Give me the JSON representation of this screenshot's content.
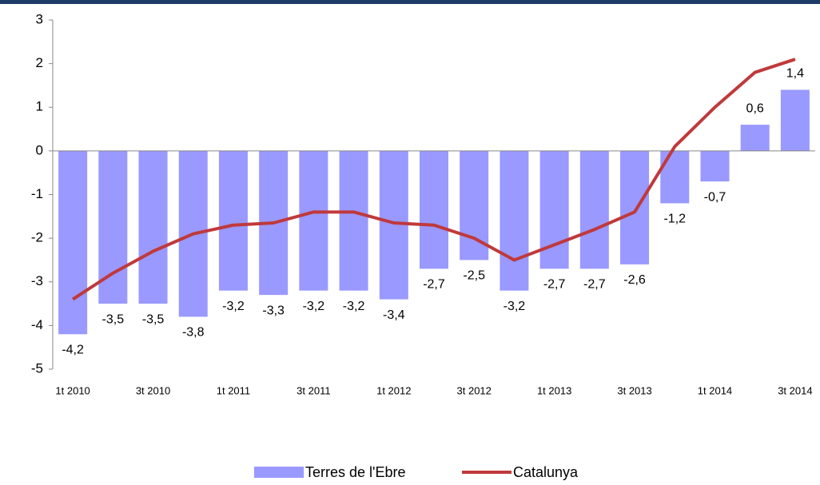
{
  "chart_data": {
    "type": "bar",
    "categories": [
      "1t 2010",
      null,
      "3t 2010",
      null,
      "1t 2011",
      null,
      "3t 2011",
      null,
      "1t 2012",
      null,
      "3t 2012",
      null,
      "1t 2013",
      null,
      "3t 2013",
      null,
      "1t 2014",
      null,
      "3t 2014"
    ],
    "series": [
      {
        "name": "Terres de l'Ebre",
        "type": "bar",
        "color": "#9999ff",
        "values": [
          -4.2,
          -3.5,
          -3.5,
          -3.8,
          -3.2,
          -3.3,
          -3.2,
          -3.2,
          -3.4,
          -2.7,
          -2.5,
          -3.2,
          -2.7,
          -2.7,
          -2.6,
          -1.2,
          -0.7,
          0.6,
          1.4
        ],
        "value_labels": [
          "-4,2",
          "-3,5",
          "-3,5",
          "-3,8",
          "-3,2",
          "-3,3",
          "-3,2",
          "-3,2",
          "-3,4",
          "-2,7",
          "-2,5",
          "-3,2",
          "-2,7",
          "-2,7",
          "-2,6",
          "-1,2",
          "-0,7",
          "0,6",
          "1,4"
        ]
      },
      {
        "name": "Catalunya",
        "type": "line",
        "color": "#c0393b",
        "values": [
          -3.4,
          -2.8,
          -2.3,
          -1.9,
          -1.7,
          -1.65,
          -1.4,
          -1.4,
          -1.65,
          -1.7,
          -2.0,
          -2.5,
          -2.15,
          -1.8,
          -1.4,
          0.1,
          1.0,
          1.8,
          2.1
        ]
      }
    ],
    "ylim": [
      -5,
      3
    ],
    "yticks": [
      -5,
      -4,
      -3,
      -2,
      -1,
      0,
      1,
      2,
      3
    ]
  }
}
